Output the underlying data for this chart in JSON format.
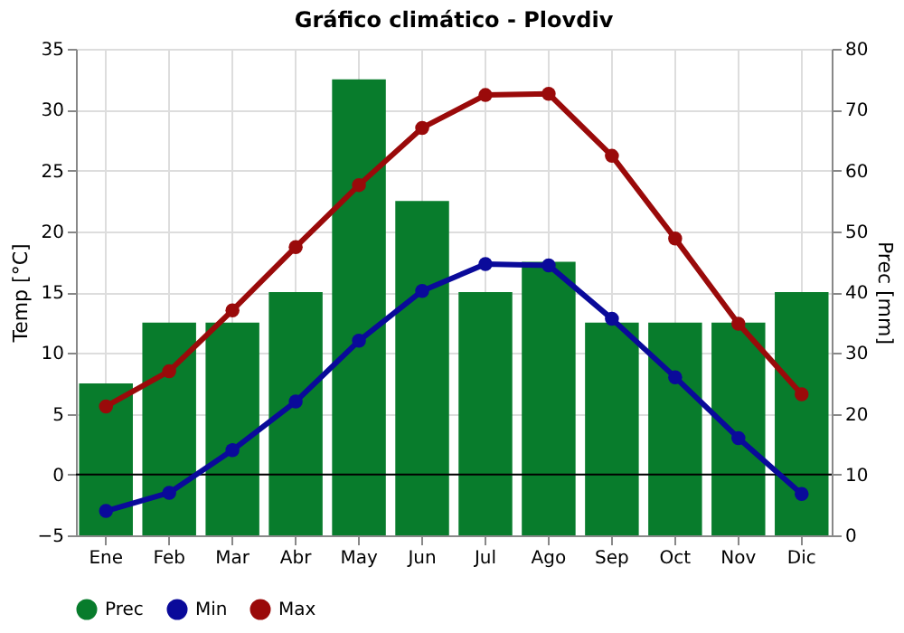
{
  "chart_data": {
    "type": "line",
    "title": "Gráfico climático - Plovdiv",
    "ylabel": "Temp [°C]",
    "y2label": "Prec [mm]",
    "categories": [
      "Ene",
      "Feb",
      "Mar",
      "Abr",
      "May",
      "Jun",
      "Jul",
      "Ago",
      "Sep",
      "Oct",
      "Nov",
      "Dic"
    ],
    "series": [
      {
        "name": "Prec",
        "type": "bar",
        "axis": "y2",
        "color": "#087c2c",
        "values": [
          25,
          35,
          35,
          40,
          75,
          55,
          40,
          45,
          35,
          35,
          35,
          40
        ]
      },
      {
        "name": "Min",
        "color": "#0a0a9a",
        "values": [
          -3,
          -1.5,
          2,
          6,
          11,
          15.1,
          17.3,
          17.2,
          12.8,
          8,
          3,
          -1.6
        ]
      },
      {
        "name": "Max",
        "color": "#9a0a0a",
        "values": [
          5.6,
          8.5,
          13.5,
          18.7,
          23.8,
          28.5,
          31.2,
          31.3,
          26.2,
          19.4,
          12.4,
          6.6
        ]
      }
    ],
    "ylim": [
      -5,
      35
    ],
    "yticks": [
      -5,
      0,
      5,
      10,
      15,
      20,
      25,
      30,
      35
    ],
    "y2lim": [
      0,
      80
    ],
    "y2ticks": [
      0,
      10,
      20,
      30,
      40,
      50,
      60,
      70,
      80
    ],
    "ref_lines": [
      {
        "axis": "y",
        "value": 0,
        "color": "#000000"
      }
    ],
    "grid": true,
    "legend": "bottom",
    "marker": "circle",
    "line_style": "solid"
  }
}
